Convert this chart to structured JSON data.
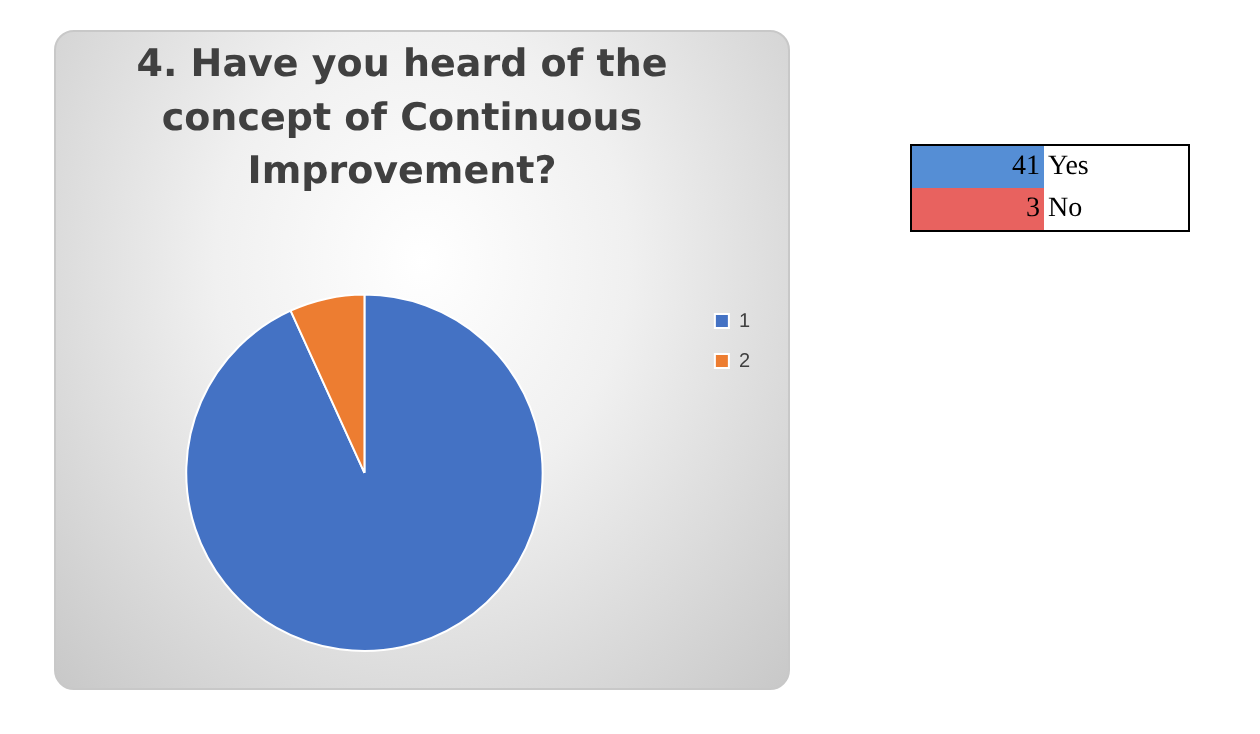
{
  "chart_data": {
    "type": "pie",
    "title": "4. Have you heard of the concept of Continuous Improvement?",
    "categories": [
      "1",
      "2"
    ],
    "values": [
      93.2,
      6.8
    ],
    "colors": [
      "#4472c4",
      "#ed7d31"
    ],
    "legend": "right",
    "annotations": [
      "41",
      "Yes",
      "3",
      "No"
    ]
  }
}
